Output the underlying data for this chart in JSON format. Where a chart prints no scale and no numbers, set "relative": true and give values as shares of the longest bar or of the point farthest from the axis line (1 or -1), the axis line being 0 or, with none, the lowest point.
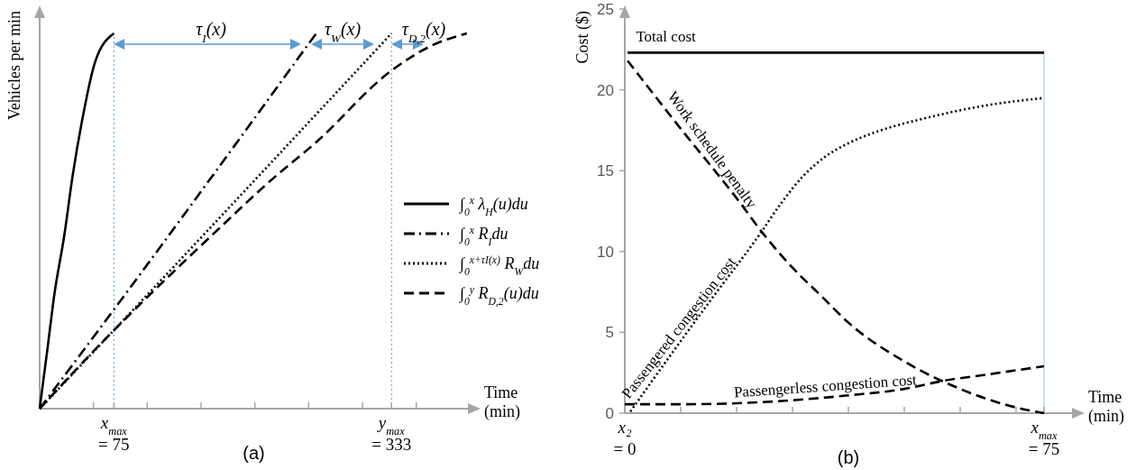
{
  "chart_data": [
    {
      "type": "line",
      "title": "(a)",
      "ylabel": "Vehicles per min",
      "xlabel": "Time (min)",
      "relative": true,
      "xlim": [
        6,
        404
      ],
      "xticks": [
        {
          "value": 56,
          "label": null
        },
        {
          "value": 75,
          "label": "x$_{max}$ = 75"
        },
        {
          "value": 106,
          "label": null
        },
        {
          "value": 156,
          "label": null
        },
        {
          "value": 206,
          "label": null
        },
        {
          "value": 256,
          "label": null
        },
        {
          "value": 306,
          "label": null
        },
        {
          "value": 333,
          "label": "y$_{max}$ = 333"
        },
        {
          "value": 356,
          "label": null
        }
      ],
      "legend": "right",
      "ref_lines": [
        {
          "axis": "x",
          "value": 75,
          "color": "#5b9bd5",
          "line_style": "dotted"
        },
        {
          "axis": "x",
          "value": 333,
          "color": "#5b9bd5",
          "line_style": "dotted"
        }
      ],
      "annotations": [
        "τ$_{I}$(x)",
        "τ$_{W}$(x)",
        "τ$_{D,2}$(x)"
      ],
      "series": [
        {
          "name": "∫$_{0}$$^{x}$ λ$_{H}$(u)du",
          "color": "#000000",
          "line_style": "solid",
          "x": [
            6,
            13,
            19.7,
            28.9,
            36.5,
            45.7,
            57.4,
            75
          ],
          "values": [
            0,
            0.154,
            0.305,
            0.462,
            0.618,
            0.772,
            0.923,
            1
          ]
        },
        {
          "name": "∫$_{0}$$^{x}$ R$_{I}$du",
          "color": "#000000",
          "line_style": "dashdot",
          "x": [
            6,
            75,
            263
          ],
          "values": [
            0,
            0.264,
            1
          ]
        },
        {
          "name": "∫$_{0}$$^{x+τI(x)}$ R$_{W}$du",
          "color": "#000000",
          "line_style": "dotted",
          "x": [
            6,
            75,
            333
          ],
          "values": [
            0,
            0.209,
            1
          ]
        },
        {
          "name": "∫$_{0}$$^{y}$ R$_{D,2}$(u)du",
          "color": "#000000",
          "line_style": "dashed",
          "x": [
            6,
            75,
            103.5,
            170.5,
            220.7,
            262.6,
            333,
            371.5,
            403
          ],
          "values": [
            0,
            0.209,
            0.29,
            0.474,
            0.608,
            0.709,
            0.901,
            0.969,
            1
          ]
        }
      ]
    },
    {
      "type": "line",
      "title": "(b)",
      "ylabel": "Cost ($)",
      "xlabel": "Time (min)",
      "xlim": [
        0,
        80
      ],
      "ylim": [
        0,
        25
      ],
      "yticks": [
        0,
        5,
        10,
        15,
        20,
        25
      ],
      "xticks": [
        {
          "value": 0,
          "label": "x₂ = 0"
        },
        {
          "value": 10,
          "label": null
        },
        {
          "value": 20,
          "label": null
        },
        {
          "value": 30,
          "label": null
        },
        {
          "value": 40,
          "label": null
        },
        {
          "value": 50,
          "label": null
        },
        {
          "value": 60,
          "label": null
        },
        {
          "value": 70,
          "label": null
        },
        {
          "value": 75,
          "label": "x$_{max}$ = 75"
        }
      ],
      "ref_lines": [
        {
          "axis": "x",
          "value": 75,
          "color": "#9dc3e6",
          "line_style": "solid"
        }
      ],
      "series": [
        {
          "name": "Total cost",
          "color": "#000000",
          "line_style": "solid",
          "x": [
            0.5,
            75
          ],
          "values": [
            22.3,
            22.3
          ]
        },
        {
          "name": "Work schedule penalty",
          "color": "#000000",
          "line_style": "dashed",
          "x": [
            0.5,
            10,
            20,
            25,
            30,
            35,
            40,
            50,
            60,
            70,
            75
          ],
          "values": [
            21.8,
            17.6,
            13.3,
            11,
            9,
            7.3,
            5.6,
            3.2,
            1.5,
            0.35,
            0
          ]
        },
        {
          "name": "Passengered congestion cost",
          "color": "#000000",
          "line_style": "dotted",
          "x": [
            1,
            8,
            15.6,
            24,
            28,
            32,
            36,
            40,
            45,
            54.4,
            64,
            75
          ],
          "values": [
            0.1,
            3.5,
            7.1,
            11,
            13,
            14.7,
            15.9,
            16.7,
            17.4,
            18.3,
            19,
            19.5
          ]
        },
        {
          "name": "Passengerless congestion cost",
          "color": "#000000",
          "line_style": "dashed",
          "x": [
            0,
            10,
            19,
            30,
            40,
            50,
            57,
            65,
            75
          ],
          "values": [
            0.55,
            0.55,
            0.6,
            0.8,
            1.1,
            1.5,
            2,
            2.4,
            2.9
          ]
        }
      ]
    }
  ]
}
